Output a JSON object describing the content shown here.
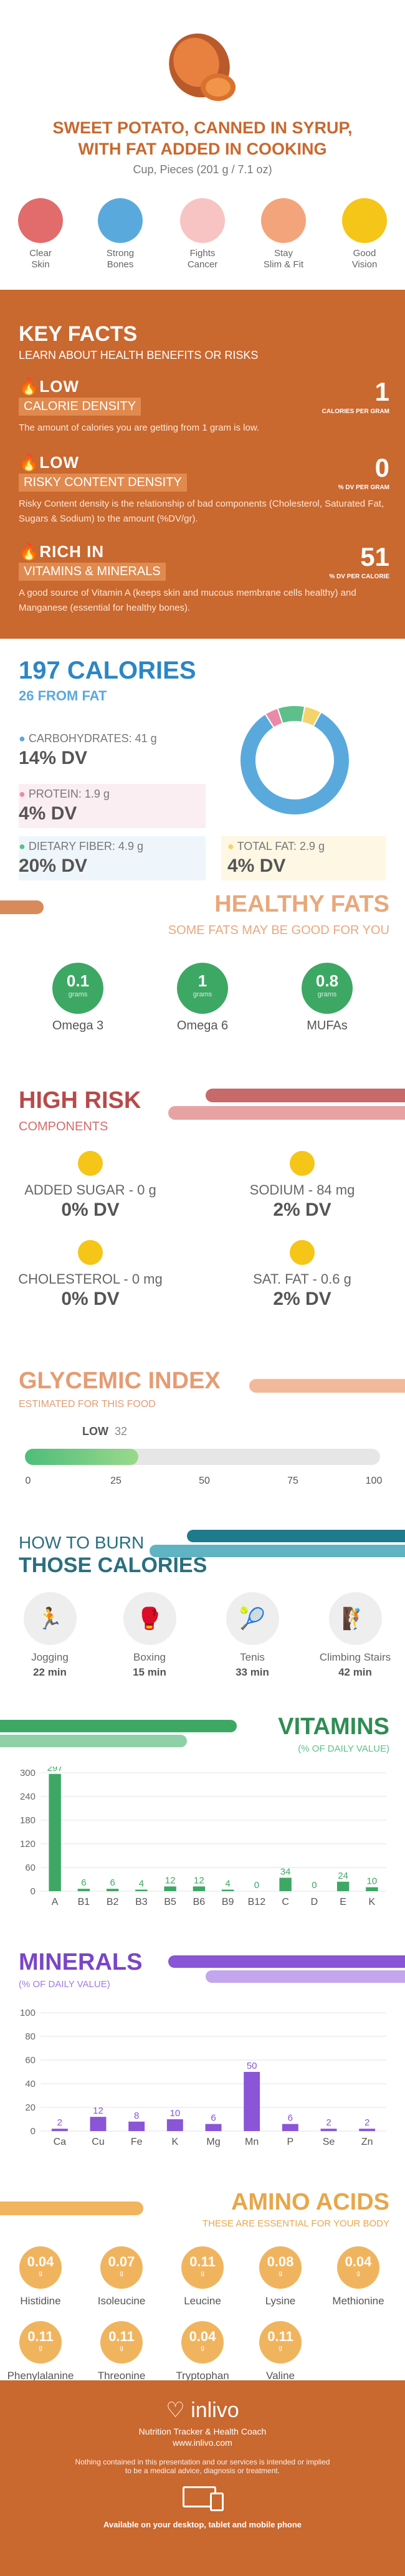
{
  "header": {
    "title_line1": "SWEET POTATO, CANNED IN SYRUP,",
    "title_line2": "WITH FAT ADDED IN COOKING",
    "serving": "Cup, Pieces (201 g / 7.1 oz)"
  },
  "benefits": [
    {
      "label1": "Clear",
      "label2": "Skin",
      "color": "#e26b6b"
    },
    {
      "label1": "Strong",
      "label2": "Bones",
      "color": "#5aa9dd"
    },
    {
      "label1": "Fights",
      "label2": "Cancer",
      "color": "#f08b8b"
    },
    {
      "label1": "Stay",
      "label2": "Slim & Fit",
      "color": "#f3a47a"
    },
    {
      "label1": "Good",
      "label2": "Vision",
      "color": "#f5c518"
    }
  ],
  "key_facts": {
    "title": "KEY FACTS",
    "subtitle": "LEARN ABOUT HEALTH BENEFITS OR RISKS",
    "items": [
      {
        "level": "LOW",
        "name": "CALORIE DENSITY",
        "value": "1",
        "unit": "CALORIES PER GRAM",
        "desc": "The amount of calories you are getting from 1 gram is low."
      },
      {
        "level": "LOW",
        "name": "RISKY CONTENT DENSITY",
        "value": "0",
        "unit": "% DV PER GRAM",
        "desc": "Risky Content density is the relationship of bad components (Cholesterol, Saturated Fat, Sugars & Sodium) to the amount (%DV/gr)."
      },
      {
        "level": "RICH IN",
        "name": "VITAMINS & MINERALS",
        "value": "51",
        "unit": "% DV PER CALORIE",
        "desc": "A good source of Vitamin A (keeps skin and mucous membrane cells healthy) and Manganese (essential for healthy bones)."
      }
    ]
  },
  "calories": {
    "title": "197 CALORIES",
    "subtitle": "26 FROM FAT",
    "carbs_label": "CARBOHYDRATES: 41 g",
    "carbs_dv": "14% DV",
    "protein_label": "PROTEIN: 1.9 g",
    "protein_dv": "4% DV",
    "fiber_label": "DIETARY FIBER: 4.9 g",
    "fiber_dv": "20% DV",
    "fat_label": "TOTAL FAT: 2.9 g",
    "fat_dv": "4% DV",
    "pie": [
      {
        "value": 83,
        "color": "#5aa9dd"
      },
      {
        "value": 4,
        "color": "#e98aa8"
      },
      {
        "value": 8,
        "color": "#5dc08a"
      },
      {
        "value": 5,
        "color": "#f3d36a"
      }
    ]
  },
  "healthy_fats": {
    "title": "HEALTHY FATS",
    "subtitle": "SOME FATS MAY BE GOOD FOR YOU",
    "unit": "grams",
    "items": [
      {
        "value": "0.1",
        "label": "Omega 3"
      },
      {
        "value": "1",
        "label": "Omega 6"
      },
      {
        "value": "0.8",
        "label": "MUFAs"
      }
    ]
  },
  "high_risk": {
    "title": "HIGH RISK",
    "subtitle": "COMPONENTS",
    "items": [
      {
        "label": "ADDED SUGAR - 0 g",
        "dv": "0% DV"
      },
      {
        "label": "SODIUM - 84 mg",
        "dv": "2% DV"
      },
      {
        "label": "CHOLESTEROL - 0 mg",
        "dv": "0% DV"
      },
      {
        "label": "SAT. FAT - 0.6 g",
        "dv": "2% DV"
      }
    ]
  },
  "glycemic": {
    "title": "GLYCEMIC INDEX",
    "subtitle": "ESTIMATED FOR THIS FOOD",
    "level": "LOW",
    "value": 32,
    "ticks": [
      "0",
      "25",
      "50",
      "75",
      "100"
    ]
  },
  "burn": {
    "title1": "HOW TO BURN",
    "title2": "THOSE CALORIES",
    "items": [
      {
        "label": "Jogging",
        "min": "22 min",
        "icon": "🏃"
      },
      {
        "label": "Boxing",
        "min": "15 min",
        "icon": "🥊"
      },
      {
        "label": "Tenis",
        "min": "33 min",
        "icon": "🎾"
      },
      {
        "label": "Climbing Stairs",
        "min": "42 min",
        "icon": "🧗"
      }
    ]
  },
  "vitamins": {
    "title": "VITAMINS",
    "subtitle": "(% OF DAILY VALUE)"
  },
  "minerals": {
    "title": "MINERALS",
    "subtitle": "(% OF DAILY VALUE)"
  },
  "chart_data": [
    {
      "type": "bar",
      "title": "VITAMINS",
      "ylabel": "(% OF DAILY VALUE)",
      "ylim": [
        0,
        300
      ],
      "yticks": [
        0,
        60,
        120,
        180,
        240,
        300
      ],
      "color": "#3da864",
      "categories": [
        "A",
        "B1",
        "B2",
        "B3",
        "B5",
        "B6",
        "B9",
        "B12",
        "C",
        "D",
        "E",
        "K"
      ],
      "values": [
        297,
        6,
        6,
        4,
        12,
        12,
        4,
        0,
        34,
        0,
        24,
        10
      ]
    },
    {
      "type": "bar",
      "title": "MINERALS",
      "ylabel": "(% OF DAILY VALUE)",
      "ylim": [
        0,
        100
      ],
      "yticks": [
        0,
        20,
        40,
        60,
        80,
        100
      ],
      "color": "#8a55d6",
      "categories": [
        "Ca",
        "Cu",
        "Fe",
        "K",
        "Mg",
        "Mn",
        "P",
        "Se",
        "Zn"
      ],
      "values": [
        2,
        12,
        8,
        10,
        6,
        50,
        6,
        2,
        2
      ]
    }
  ],
  "amino": {
    "title": "AMINO ACIDS",
    "subtitle": "THESE ARE ESSENTIAL FOR YOUR BODY",
    "unit": "g",
    "items": [
      {
        "value": "0.04",
        "label": "Histidine"
      },
      {
        "value": "0.07",
        "label": "Isoleucine"
      },
      {
        "value": "0.11",
        "label": "Leucine"
      },
      {
        "value": "0.08",
        "label": "Lysine"
      },
      {
        "value": "0.04",
        "label": "Methionine"
      },
      {
        "value": "0.11",
        "label": "Phenylalanine"
      },
      {
        "value": "0.11",
        "label": "Threonine"
      },
      {
        "value": "0.04",
        "label": "Tryptophan"
      },
      {
        "value": "0.11",
        "label": "Valine"
      }
    ]
  },
  "footer": {
    "brand": "inlivo",
    "tagline": "Nutrition Tracker & Health Coach",
    "url": "www.inlivo.com",
    "disclaimer1": "Nothing contained in this presentation and our services is intended or implied",
    "disclaimer2": "to be a medical advice, diagnosis or treatment.",
    "available": "Available on your desktop, tablet and mobile phone"
  }
}
